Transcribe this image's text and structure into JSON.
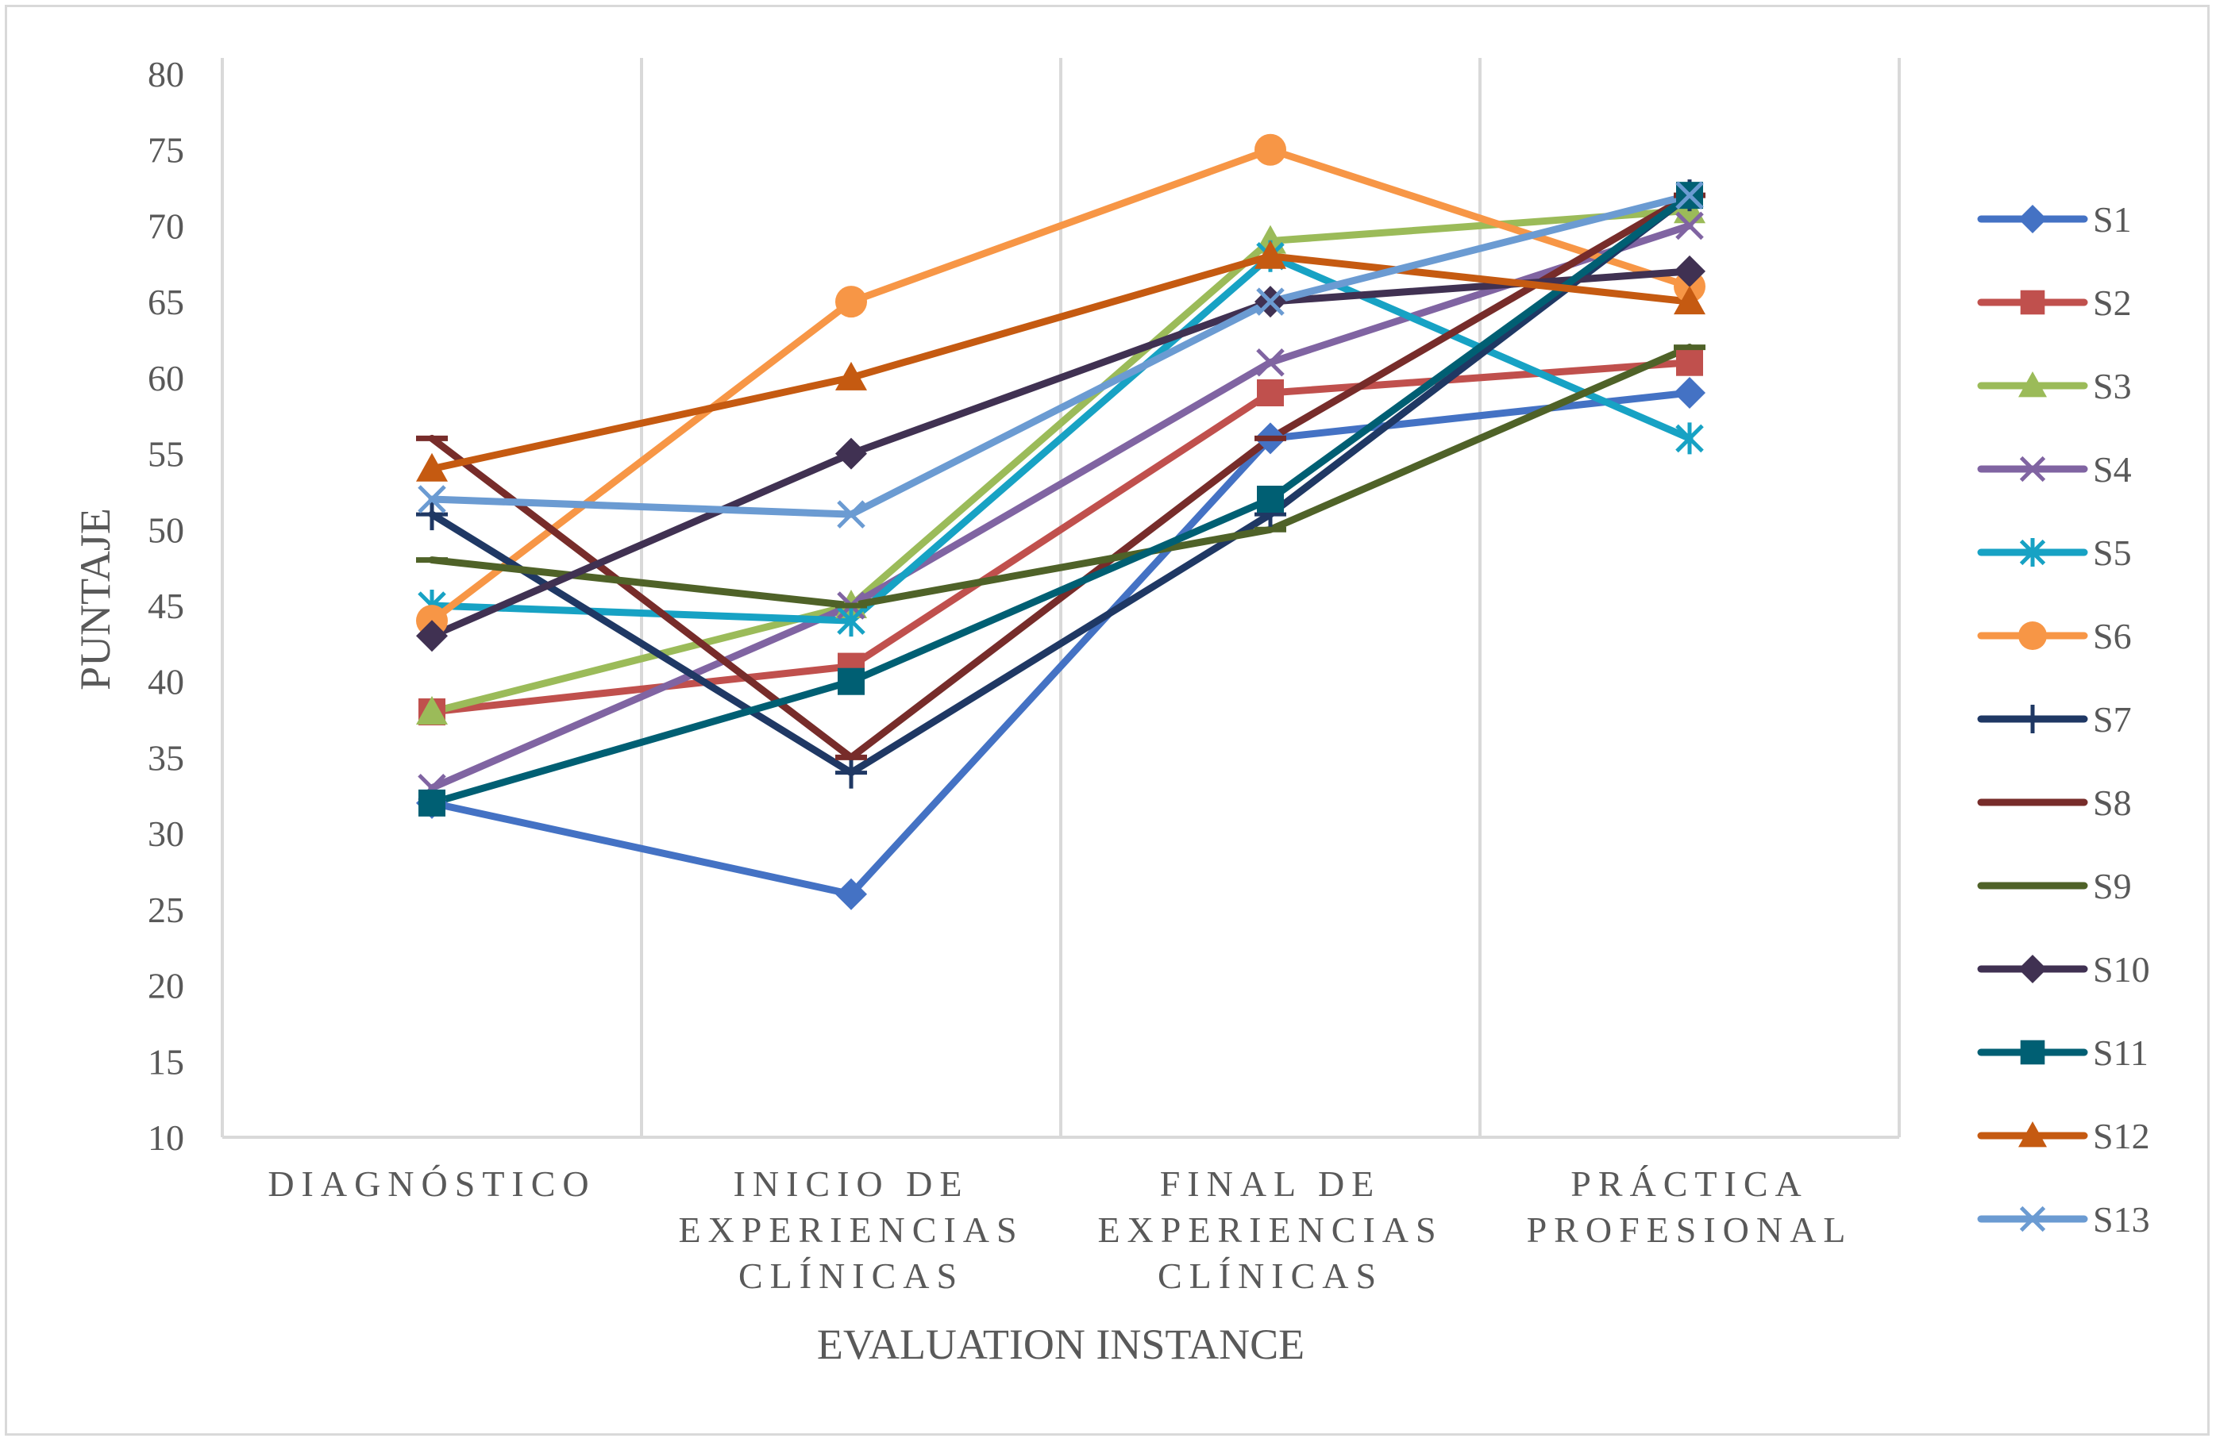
{
  "chart_data": {
    "type": "line",
    "categories": [
      [
        "DIAGNÓSTICO"
      ],
      [
        "INICIO DE",
        "EXPERIENCIAS",
        "CLÍNICAS"
      ],
      [
        "FINAL DE",
        "EXPERIENCIAS",
        "CLÍNICAS"
      ],
      [
        "PRÁCTICA",
        "PROFESIONAL"
      ]
    ],
    "xlabel": "EVALUATION INSTANCE",
    "ylabel": "PUNTAJE",
    "ylim": [
      10,
      80
    ],
    "yticks": [
      10,
      15,
      20,
      25,
      30,
      35,
      40,
      45,
      50,
      55,
      60,
      65,
      70,
      75,
      80
    ],
    "vertical_gridlines": true,
    "legend_position": "right",
    "series": [
      {
        "name": "S1",
        "color": "#4472c4",
        "marker": "diamond",
        "values": [
          32,
          26,
          56,
          59
        ]
      },
      {
        "name": "S2",
        "color": "#c0504d",
        "marker": "square",
        "values": [
          38,
          41,
          59,
          61
        ]
      },
      {
        "name": "S3",
        "color": "#9bbb59",
        "marker": "triangle",
        "values": [
          38,
          45,
          69,
          71
        ]
      },
      {
        "name": "S4",
        "color": "#8064a2",
        "marker": "x",
        "values": [
          33,
          45,
          61,
          70
        ]
      },
      {
        "name": "S5",
        "color": "#17a2c4",
        "marker": "star",
        "values": [
          45,
          44,
          68,
          56
        ]
      },
      {
        "name": "S6",
        "color": "#f79646",
        "marker": "circle",
        "values": [
          44,
          65,
          75,
          66
        ]
      },
      {
        "name": "S7",
        "color": "#1f3864",
        "marker": "plus",
        "values": [
          51,
          34,
          51,
          72
        ]
      },
      {
        "name": "S8",
        "color": "#772c2a",
        "marker": "dash",
        "values": [
          56,
          35,
          56,
          72
        ]
      },
      {
        "name": "S9",
        "color": "#4f6228",
        "marker": "dash",
        "values": [
          48,
          45,
          50,
          62
        ]
      },
      {
        "name": "S10",
        "color": "#403152",
        "marker": "diamond",
        "values": [
          43,
          55,
          65,
          67
        ]
      },
      {
        "name": "S11",
        "color": "#005f73",
        "marker": "square",
        "values": [
          32,
          40,
          52,
          72
        ]
      },
      {
        "name": "S12",
        "color": "#c55a11",
        "marker": "triangle",
        "values": [
          54,
          60,
          68,
          65
        ]
      },
      {
        "name": "S13",
        "color": "#6b9bd2",
        "marker": "x",
        "values": [
          52,
          51,
          65,
          72
        ]
      }
    ]
  }
}
